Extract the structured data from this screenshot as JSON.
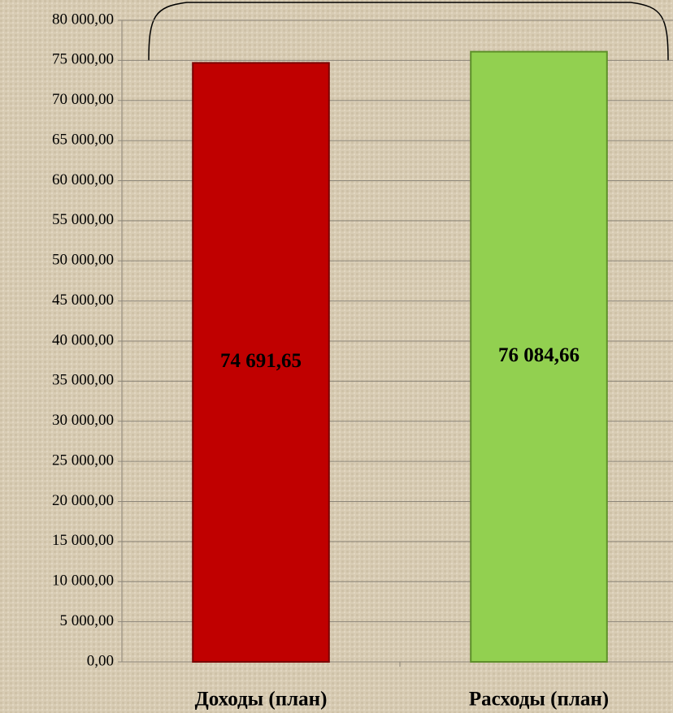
{
  "chart_data": {
    "type": "bar",
    "categories": [
      "Доходы (план)",
      "Расходы (план)"
    ],
    "values": [
      74691.65,
      76084.66
    ],
    "value_labels": [
      "74 691,65",
      "76 084,66"
    ],
    "colors": [
      "#c00000",
      "#92d050"
    ],
    "ylim": [
      0,
      80000
    ],
    "yticks": [
      {
        "value": 0,
        "label": "0,00"
      },
      {
        "value": 5000,
        "label": "5 000,00"
      },
      {
        "value": 10000,
        "label": "10 000,00"
      },
      {
        "value": 15000,
        "label": "15 000,00"
      },
      {
        "value": 20000,
        "label": "20 000,00"
      },
      {
        "value": 25000,
        "label": "25 000,00"
      },
      {
        "value": 30000,
        "label": "30 000,00"
      },
      {
        "value": 35000,
        "label": "35 000,00"
      },
      {
        "value": 40000,
        "label": "40 000,00"
      },
      {
        "value": 45000,
        "label": "45 000,00"
      },
      {
        "value": 50000,
        "label": "50 000,00"
      },
      {
        "value": 55000,
        "label": "55 000,00"
      },
      {
        "value": 60000,
        "label": "60 000,00"
      },
      {
        "value": 65000,
        "label": "65 000,00"
      },
      {
        "value": 70000,
        "label": "70 000,00"
      },
      {
        "value": 75000,
        "label": "75 000,00"
      },
      {
        "value": 80000,
        "label": "80 000,00"
      }
    ],
    "grid": true
  }
}
